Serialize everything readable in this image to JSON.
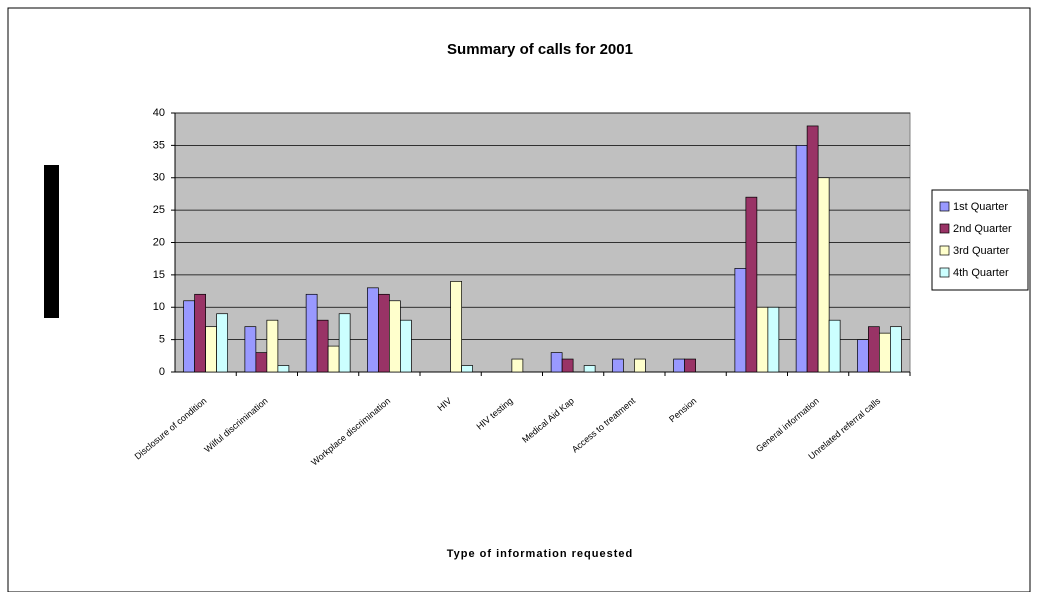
{
  "chart_data": {
    "type": "bar",
    "title": "Summary of calls  for 2001",
    "x_label": "Type of information requested",
    "categories": [
      "Disclosure of condition",
      "Wilful discrimination",
      null,
      "Workplace discrimination",
      "HIV",
      "HIV testing",
      "Medical Aid Kap",
      "Access to treatment",
      "Pension",
      null,
      "General information",
      "Unrelated referral calls"
    ],
    "series": [
      {
        "name": "1st Quarter",
        "color": "#9999ff",
        "values": [
          11,
          7,
          12,
          13,
          null,
          null,
          3,
          2,
          2,
          16,
          35,
          5
        ]
      },
      {
        "name": "2nd Quarter",
        "color": "#993366",
        "values": [
          12,
          3,
          8,
          12,
          null,
          null,
          2,
          null,
          2,
          27,
          38,
          7
        ]
      },
      {
        "name": "3rd Quarter",
        "color": "#ffffcc",
        "values": [
          7,
          8,
          4,
          11,
          14,
          2,
          null,
          2,
          null,
          10,
          30,
          6
        ]
      },
      {
        "name": "4th Quarter",
        "color": "#ccffff",
        "values": [
          9,
          1,
          9,
          8,
          1,
          null,
          1,
          null,
          null,
          10,
          8,
          7
        ]
      }
    ],
    "ylim": [
      0,
      40
    ],
    "yticks": [
      0,
      5,
      10,
      15,
      20,
      25,
      30,
      35,
      40
    ],
    "grid": true,
    "legend": "right"
  }
}
